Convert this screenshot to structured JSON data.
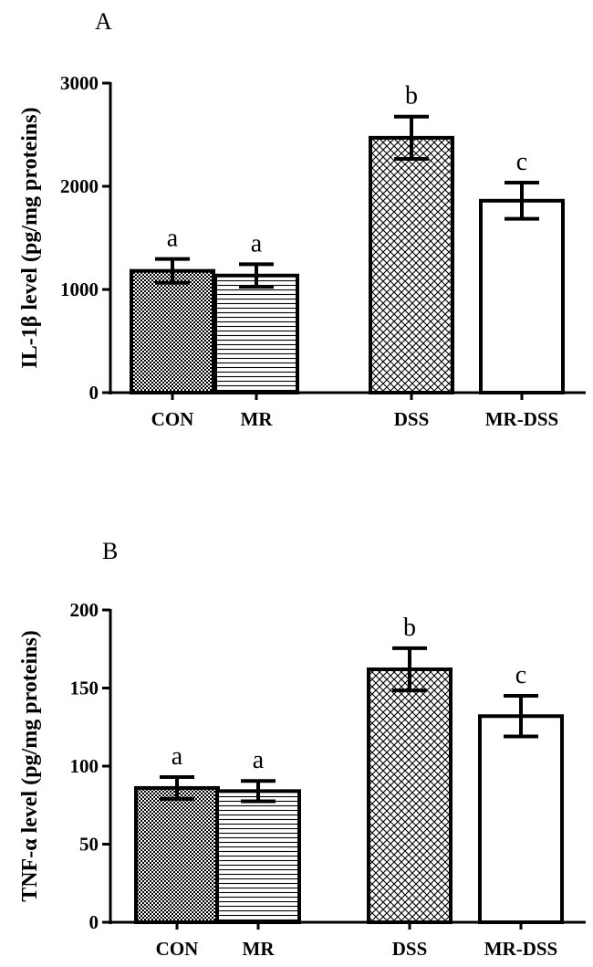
{
  "chart_data": [
    {
      "type": "bar",
      "panel_label": "A",
      "ylabel": "IL-1β level (pg/mg proteins)",
      "xlabel": "",
      "categories": [
        "CON",
        "MR",
        "DSS",
        "MR-DSS"
      ],
      "values": [
        1180,
        1135,
        2470,
        1860
      ],
      "errors": [
        115,
        110,
        205,
        175
      ],
      "significance": [
        "a",
        "a",
        "b",
        "c"
      ],
      "patterns": [
        "checker",
        "hlines",
        "crosshatch",
        "none"
      ],
      "ylim": [
        0,
        3000
      ],
      "yticks": [
        "0",
        "1000",
        "2000",
        "3000"
      ],
      "ytick_values": [
        0,
        1000,
        2000,
        3000
      ]
    },
    {
      "type": "bar",
      "panel_label": "B",
      "ylabel": "TNF-α level (pg/mg proteins)",
      "xlabel": "",
      "categories": [
        "CON",
        "MR",
        "DSS",
        "MR-DSS"
      ],
      "values": [
        86,
        84,
        162,
        132
      ],
      "errors": [
        7,
        6.5,
        13.5,
        13
      ],
      "significance": [
        "a",
        "a",
        "b",
        "c"
      ],
      "patterns": [
        "checker",
        "hlines",
        "crosshatch",
        "none"
      ],
      "ylim": [
        0,
        200
      ],
      "yticks": [
        "0",
        "50",
        "100",
        "150",
        "200"
      ],
      "ytick_values": [
        0,
        50,
        100,
        150,
        200
      ]
    }
  ]
}
